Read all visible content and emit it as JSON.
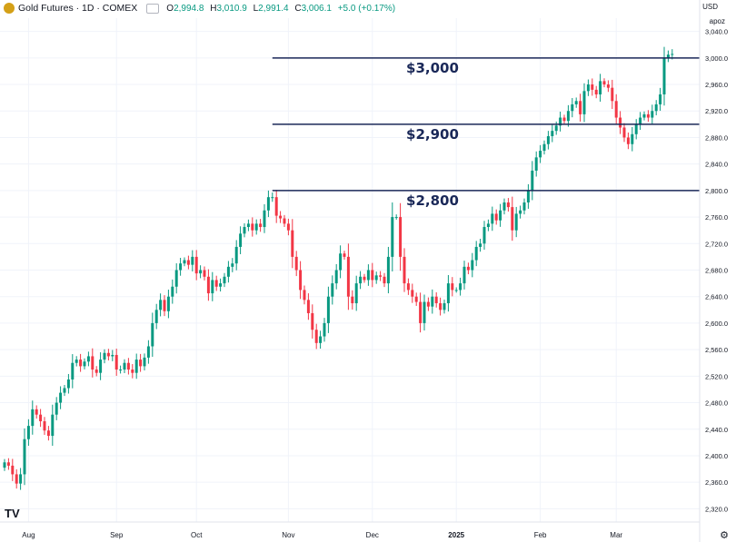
{
  "header": {
    "title": "Gold Futures · 1D · COMEX",
    "open_label": "O",
    "open": "2,994.8",
    "high_label": "H",
    "high": "3,010.9",
    "low_label": "L",
    "low": "2,991.4",
    "close_label": "C",
    "close": "3,006.1",
    "change": "+5.0 (+0.17%)"
  },
  "currency": "USD",
  "unit_label": "apoz",
  "colors": {
    "up": "#089981",
    "down": "#f23645",
    "level_line": "#1a2858",
    "grid": "#f0f3fa"
  },
  "icons": {
    "symbol": "gold-coin-icon",
    "visibility": "eye-icon",
    "logo": "tradingview-logo-icon",
    "settings": "gear-icon"
  },
  "logo_text": "TV",
  "chart_data": {
    "type": "candlestick",
    "title": "Gold Futures · 1D · COMEX",
    "ylim": [
      2300,
      3060
    ],
    "y_ticks": [
      "2,320.0",
      "2,360.0",
      "2,400.0",
      "2,440.0",
      "2,480.0",
      "2,520.0",
      "2,560.0",
      "2,600.0",
      "2,640.0",
      "2,680.0",
      "2,720.0",
      "2,760.0",
      "2,800.0",
      "2,840.0",
      "2,880.0",
      "2,920.0",
      "2,960.0",
      "3,000.0",
      "3,040.0"
    ],
    "x_ticks": [
      {
        "label": "Aug",
        "index": 6
      },
      {
        "label": "Sep",
        "index": 28
      },
      {
        "label": "Oct",
        "index": 48
      },
      {
        "label": "Nov",
        "index": 71
      },
      {
        "label": "Dec",
        "index": 92
      },
      {
        "label": "2025",
        "index": 113
      },
      {
        "label": "Feb",
        "index": 134
      },
      {
        "label": "Mar",
        "index": 153
      }
    ],
    "levels": [
      {
        "value": 3000,
        "label": "$3,000",
        "start_index": 67
      },
      {
        "value": 2900,
        "label": "$2,900",
        "start_index": 67
      },
      {
        "value": 2800,
        "label": "$2,800",
        "start_index": 67
      }
    ],
    "close": [
      2390,
      2385,
      2372,
      2358,
      2372,
      2425,
      2445,
      2470,
      2462,
      2452,
      2438,
      2430,
      2462,
      2480,
      2495,
      2502,
      2515,
      2540,
      2545,
      2535,
      2542,
      2550,
      2530,
      2525,
      2545,
      2555,
      2550,
      2552,
      2530,
      2530,
      2540,
      2530,
      2525,
      2545,
      2535,
      2548,
      2565,
      2600,
      2620,
      2635,
      2618,
      2640,
      2655,
      2680,
      2690,
      2695,
      2688,
      2700,
      2675,
      2680,
      2670,
      2645,
      2665,
      2655,
      2660,
      2670,
      2685,
      2690,
      2715,
      2735,
      2745,
      2750,
      2740,
      2750,
      2745,
      2770,
      2790,
      2790,
      2762,
      2758,
      2750,
      2740,
      2700,
      2680,
      2650,
      2635,
      2615,
      2590,
      2570,
      2580,
      2600,
      2640,
      2660,
      2680,
      2705,
      2700,
      2640,
      2630,
      2660,
      2670,
      2665,
      2680,
      2665,
      2672,
      2670,
      2660,
      2700,
      2760,
      2760,
      2700,
      2660,
      2650,
      2640,
      2632,
      2600,
      2632,
      2625,
      2640,
      2630,
      2620,
      2630,
      2660,
      2650,
      2650,
      2660,
      2685,
      2680,
      2695,
      2715,
      2720,
      2745,
      2750,
      2765,
      2755,
      2770,
      2782,
      2775,
      2740,
      2765,
      2770,
      2782,
      2800,
      2830,
      2850,
      2860,
      2870,
      2882,
      2890,
      2898,
      2910,
      2905,
      2920,
      2930,
      2935,
      2915,
      2950,
      2960,
      2952,
      2945,
      2965,
      2960,
      2955,
      2935,
      2910,
      2895,
      2880,
      2870,
      2885,
      2900,
      2910,
      2915,
      2910,
      2920,
      2930,
      2945,
      3000,
      3005,
      3006
    ]
  }
}
